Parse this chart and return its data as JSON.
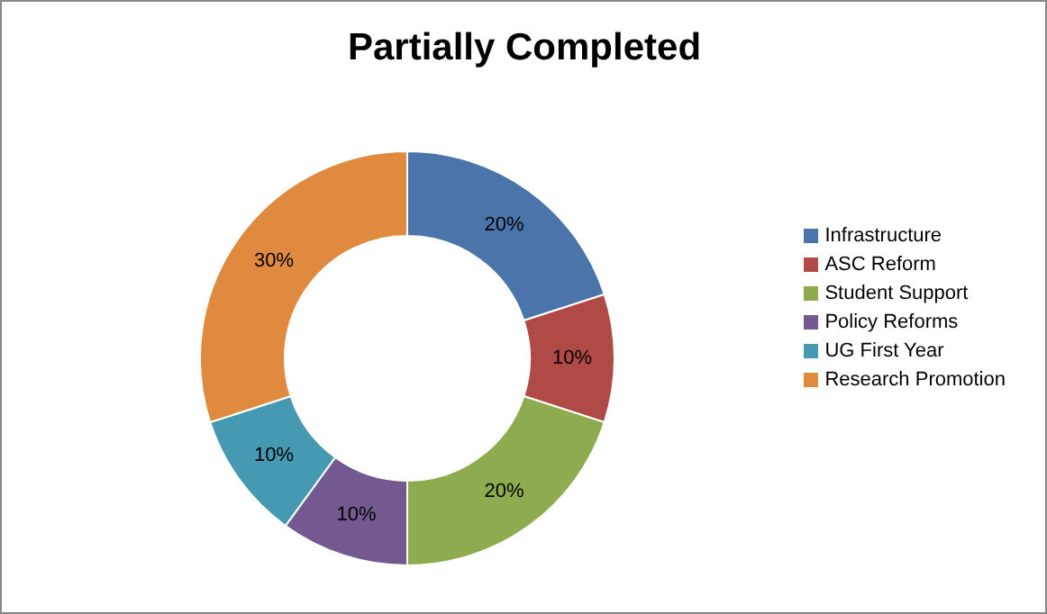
{
  "chart_data": {
    "type": "donut",
    "title": "Partially Completed",
    "categories": [
      "Infrastructure",
      "ASC Reform",
      "Student Support",
      "Policy Reforms",
      "UG First Year",
      "Research Promotion"
    ],
    "values": [
      20,
      10,
      20,
      10,
      10,
      30
    ],
    "value_labels": [
      "20%",
      "10%",
      "20%",
      "10%",
      "10%",
      "30%"
    ],
    "colors": [
      "#4a74aa",
      "#b04a47",
      "#8eac4f",
      "#73598f",
      "#4599b0",
      "#df8a3f"
    ],
    "legend": "right"
  }
}
